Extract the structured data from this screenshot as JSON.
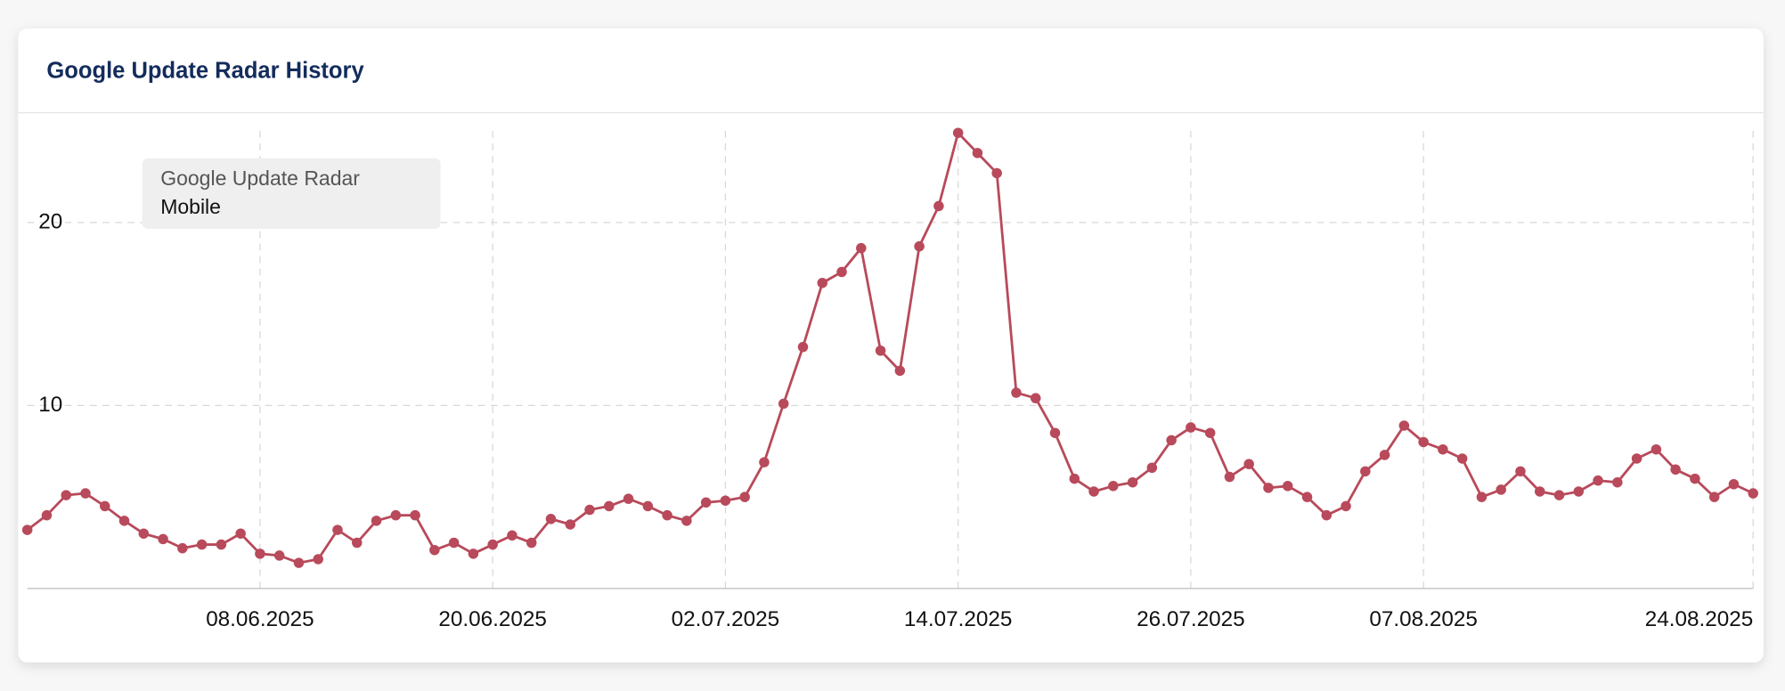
{
  "chart_data": {
    "type": "line",
    "title": "Google Update Radar History",
    "legend_title": "Google Update Radar",
    "x": [
      "27.05.2025",
      "28.05.2025",
      "29.05.2025",
      "30.05.2025",
      "31.05.2025",
      "01.06.2025",
      "02.06.2025",
      "03.06.2025",
      "04.06.2025",
      "05.06.2025",
      "06.06.2025",
      "07.06.2025",
      "08.06.2025",
      "09.06.2025",
      "10.06.2025",
      "11.06.2025",
      "12.06.2025",
      "13.06.2025",
      "14.06.2025",
      "15.06.2025",
      "16.06.2025",
      "17.06.2025",
      "18.06.2025",
      "19.06.2025",
      "20.06.2025",
      "21.06.2025",
      "22.06.2025",
      "23.06.2025",
      "24.06.2025",
      "25.06.2025",
      "26.06.2025",
      "27.06.2025",
      "28.06.2025",
      "29.06.2025",
      "30.06.2025",
      "01.07.2025",
      "02.07.2025",
      "03.07.2025",
      "04.07.2025",
      "05.07.2025",
      "06.07.2025",
      "07.07.2025",
      "08.07.2025",
      "09.07.2025",
      "10.07.2025",
      "11.07.2025",
      "12.07.2025",
      "13.07.2025",
      "14.07.2025",
      "15.07.2025",
      "16.07.2025",
      "17.07.2025",
      "18.07.2025",
      "19.07.2025",
      "20.07.2025",
      "21.07.2025",
      "22.07.2025",
      "23.07.2025",
      "24.07.2025",
      "25.07.2025",
      "26.07.2025",
      "27.07.2025",
      "28.07.2025",
      "29.07.2025",
      "30.07.2025",
      "31.07.2025",
      "01.08.2025",
      "02.08.2025",
      "03.08.2025",
      "04.08.2025",
      "05.08.2025",
      "06.08.2025",
      "07.08.2025",
      "08.08.2025",
      "09.08.2025",
      "10.08.2025",
      "11.08.2025",
      "12.08.2025",
      "13.08.2025",
      "14.08.2025",
      "15.08.2025",
      "16.08.2025",
      "17.08.2025",
      "18.08.2025",
      "19.08.2025",
      "20.08.2025",
      "21.08.2025",
      "22.08.2025",
      "23.08.2025",
      "24.08.2025"
    ],
    "series": [
      {
        "name": "Mobile",
        "color": "#b84a5b",
        "values": [
          3.2,
          4.0,
          5.1,
          5.2,
          4.5,
          3.7,
          3.0,
          2.7,
          2.2,
          2.4,
          2.4,
          3.0,
          1.9,
          1.8,
          1.4,
          1.6,
          3.2,
          2.5,
          3.7,
          4.0,
          4.0,
          2.1,
          2.5,
          1.9,
          2.4,
          2.9,
          2.5,
          3.8,
          3.5,
          4.3,
          4.5,
          4.9,
          4.5,
          4.0,
          3.7,
          4.7,
          4.8,
          5.0,
          6.9,
          10.1,
          13.2,
          16.7,
          17.3,
          18.6,
          13.0,
          11.9,
          18.7,
          20.9,
          24.9,
          23.8,
          22.7,
          10.7,
          10.4,
          8.5,
          6.0,
          5.3,
          5.6,
          5.8,
          6.6,
          8.1,
          8.8,
          8.5,
          6.1,
          6.8,
          5.5,
          5.6,
          5.0,
          4.0,
          4.5,
          6.4,
          7.3,
          8.9,
          8.0,
          7.6,
          7.1,
          5.0,
          5.4,
          6.4,
          5.3,
          5.1,
          5.3,
          5.9,
          5.8,
          7.1,
          7.6,
          6.5,
          6.0,
          5.0,
          5.7,
          5.2
        ]
      }
    ],
    "xticks": [
      "08.06.2025",
      "20.06.2025",
      "02.07.2025",
      "14.07.2025",
      "26.07.2025",
      "07.08.2025",
      "24.08.2025"
    ],
    "ylim": [
      0,
      26
    ],
    "yticks": [
      10,
      20
    ],
    "grid": true
  }
}
